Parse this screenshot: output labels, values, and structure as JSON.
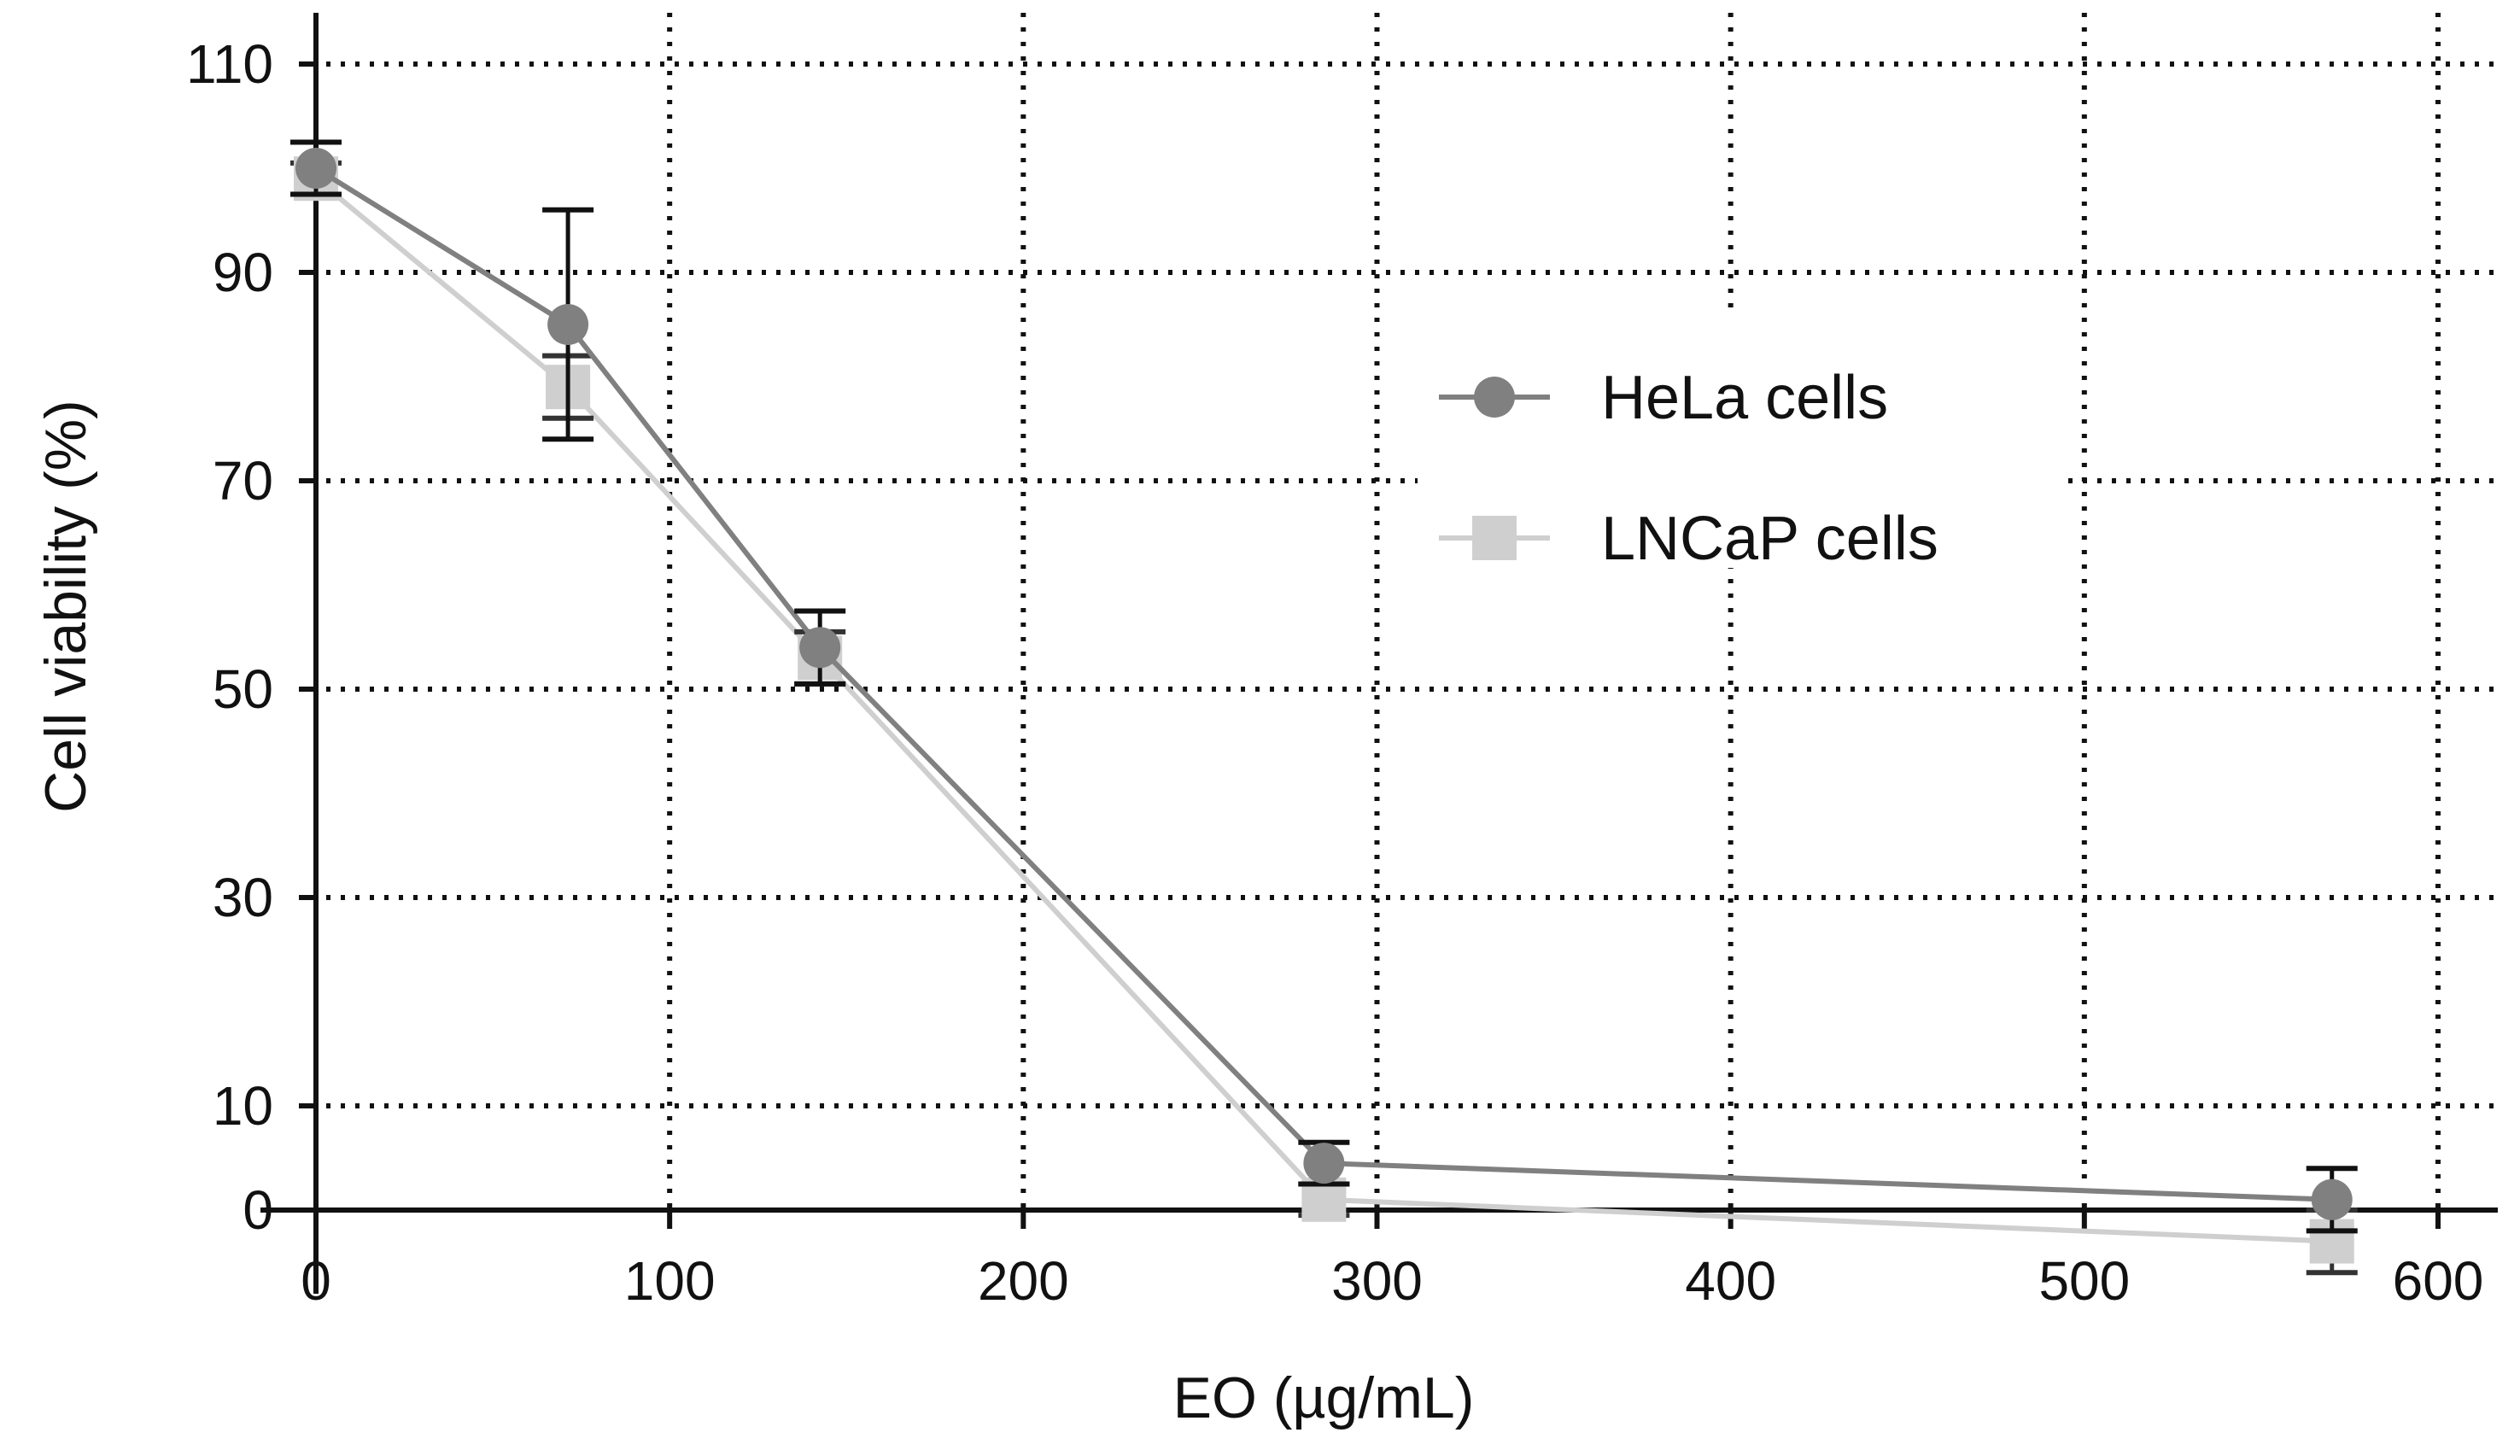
{
  "chart_data": {
    "type": "line",
    "title": "",
    "xlabel": "EO (µg/mL)",
    "ylabel": "Cell viability (%)",
    "xlim": [
      -5,
      615
    ],
    "ylim": [
      -7,
      114
    ],
    "x_ticks": [
      0,
      100,
      200,
      300,
      400,
      500,
      600
    ],
    "y_ticks": [
      0,
      10,
      30,
      50,
      70,
      90,
      110
    ],
    "grid": true,
    "legend_position": "top-right",
    "x": [
      0,
      71.25,
      142.5,
      285,
      570
    ],
    "series": [
      {
        "name": "HeLa cells",
        "marker": "circle",
        "color": "#808080",
        "values": [
          100,
          85,
          54,
          4.5,
          1
        ],
        "error": [
          2.5,
          11,
          3.5,
          2,
          3
        ]
      },
      {
        "name": "LNCaP cells",
        "marker": "square",
        "color": "#cfcfcf",
        "values": [
          99,
          79,
          53,
          1,
          -3
        ],
        "error": [
          1.5,
          3,
          2.5,
          1.5,
          3
        ]
      }
    ]
  }
}
